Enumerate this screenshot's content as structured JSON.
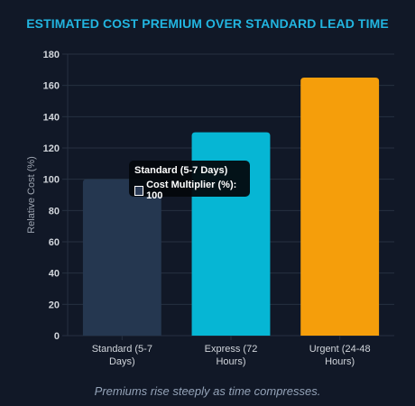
{
  "page": {
    "title": "ESTIMATED COST PREMIUM OVER STANDARD LEAD TIME",
    "caption": "Premiums rise steeply as time compresses."
  },
  "tooltip": {
    "title": "Standard (5-7 Days)",
    "label": "Cost Multiplier (%): 100"
  },
  "chart_data": {
    "type": "bar",
    "title": "ESTIMATED COST PREMIUM OVER STANDARD LEAD TIME",
    "xlabel": "",
    "ylabel": "Relative Cost (%)",
    "ylim": [
      0,
      180
    ],
    "yticks": [
      0,
      20,
      40,
      60,
      80,
      100,
      120,
      140,
      160,
      180
    ],
    "grid": true,
    "categories": [
      [
        "Standard (5-7",
        "Days)"
      ],
      [
        "Express (72",
        "Hours)"
      ],
      [
        "Urgent (24-48",
        "Hours)"
      ]
    ],
    "series": [
      {
        "label": "Cost Multiplier (%)",
        "values": [
          100,
          130,
          165
        ],
        "colors": [
          "#253750",
          "#06b6d4",
          "#f59e0b"
        ]
      }
    ]
  },
  "colors": {
    "background": "#111827",
    "title": "#22b5e0",
    "grid": "#263041",
    "tick_text": "#d1d5db",
    "axis_label": "#9ca3af"
  }
}
